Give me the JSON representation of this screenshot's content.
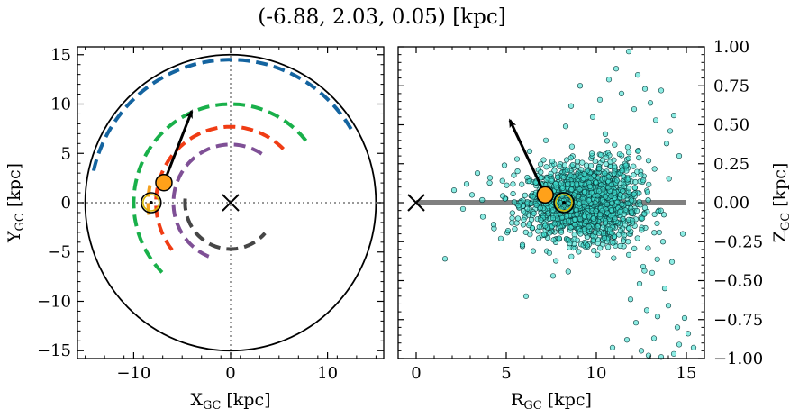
{
  "title": "(-6.88, 2.03, 0.05) [kpc]",
  "chart_data": [
    {
      "type": "line",
      "panel": "galactic-plane",
      "xlabel": "X",
      "xlabel_sub": "GC",
      "xlabel_unit": " [kpc]",
      "ylabel": "Y",
      "ylabel_sub": "GC",
      "ylabel_unit": " [kpc]",
      "xlim": [
        -15.8,
        15.8
      ],
      "ylim": [
        -15.8,
        15.8
      ],
      "xticks": [
        -10,
        0,
        10
      ],
      "xtick_labels": [
        "−10",
        "0",
        "10"
      ],
      "yticks": [
        -15,
        -10,
        -5,
        0,
        5,
        10,
        15
      ],
      "ytick_labels": [
        "−15",
        "−10",
        "−5",
        "0",
        "5",
        "10",
        "15"
      ],
      "grid": false,
      "boundary_circle_radius": 15,
      "galactic_center": [
        0,
        0
      ],
      "sun": [
        -8.2,
        0
      ],
      "object": [
        -6.88,
        2.03
      ],
      "velocity_arrow_end": [
        -4.0,
        9.3
      ],
      "arcs": [
        {
          "radius": 14.5,
          "start_deg": 31,
          "end_deg": 169,
          "color": "#1464A0"
        },
        {
          "radius": 10.0,
          "start_deg": 39,
          "end_deg": 225,
          "color": "#19B04A"
        },
        {
          "radius": 7.7,
          "start_deg": 45,
          "end_deg": 220,
          "color": "#F03C14"
        },
        {
          "radius": 5.9,
          "start_deg": 57,
          "end_deg": 251,
          "color": "#7F5096"
        },
        {
          "radius": 4.7,
          "start_deg": 175,
          "end_deg": 319,
          "color": "#464646"
        },
        {
          "radius": 8.5,
          "start_deg": 168,
          "end_deg": 192,
          "color": "#F5A01E"
        }
      ]
    },
    {
      "type": "scatter",
      "panel": "meridional-plane",
      "xlabel": "R",
      "xlabel_sub": "GC",
      "xlabel_unit": " [kpc]",
      "ylabel": "Z",
      "ylabel_sub": "GC",
      "ylabel_unit": " [kpc]",
      "xlim": [
        -1.0,
        16.0
      ],
      "ylim": [
        -1.0,
        1.0
      ],
      "xticks": [
        0,
        5,
        10,
        15
      ],
      "xtick_labels": [
        "0",
        "5",
        "10",
        "15"
      ],
      "yticks": [
        -1.0,
        -0.75,
        -0.5,
        -0.25,
        0.0,
        0.25,
        0.5,
        0.75,
        1.0
      ],
      "ytick_labels": [
        "−1.00",
        "−0.75",
        "−0.50",
        "−0.25",
        "0.00",
        "0.25",
        "0.50",
        "0.75",
        "1.00"
      ],
      "grid": false,
      "disk_line": {
        "x": [
          0,
          15
        ],
        "z": 0,
        "color": "#808080"
      },
      "galactic_center": [
        0,
        0
      ],
      "sun": [
        8.2,
        0.0
      ],
      "object": [
        7.16,
        0.05
      ],
      "velocity_arrow_end": [
        5.2,
        0.53
      ],
      "point_color": "#40E0D0",
      "points_core": {
        "count": 1700,
        "r_mean": 9.3,
        "r_sd": 1.5,
        "z_sd": 0.11
      },
      "points_outer": [
        [
          11.8,
          0.97
        ],
        [
          11.1,
          0.86
        ],
        [
          12.3,
          0.82
        ],
        [
          10.7,
          0.79
        ],
        [
          9.1,
          0.75
        ],
        [
          12.7,
          0.73
        ],
        [
          13.6,
          0.72
        ],
        [
          11.4,
          0.7
        ],
        [
          10.2,
          0.66
        ],
        [
          13.0,
          0.64
        ],
        [
          8.6,
          0.62
        ],
        [
          12.1,
          0.6
        ],
        [
          14.3,
          0.56
        ],
        [
          9.8,
          0.55
        ],
        [
          13.3,
          0.53
        ],
        [
          8.3,
          0.49
        ],
        [
          14.1,
          0.46
        ],
        [
          10.5,
          0.44
        ],
        [
          7.2,
          0.4
        ],
        [
          13.9,
          0.38
        ],
        [
          6.3,
          0.33
        ],
        [
          14.6,
          0.3
        ],
        [
          5.6,
          0.28
        ],
        [
          12.9,
          0.27
        ],
        [
          4.9,
          0.24
        ],
        [
          3.4,
          0.19
        ],
        [
          4.1,
          0.16
        ],
        [
          2.8,
          0.12
        ],
        [
          2.1,
          0.08
        ],
        [
          3.1,
          0.05
        ],
        [
          2.6,
          -0.04
        ],
        [
          3.7,
          -0.09
        ],
        [
          4.3,
          -0.14
        ],
        [
          5.1,
          -0.18
        ],
        [
          14.8,
          -0.2
        ],
        [
          4.7,
          -0.23
        ],
        [
          13.7,
          -0.25
        ],
        [
          5.9,
          -0.27
        ],
        [
          6.5,
          -0.31
        ],
        [
          1.6,
          -0.36
        ],
        [
          14.2,
          -0.38
        ],
        [
          12.6,
          -0.41
        ],
        [
          13.1,
          -0.45
        ],
        [
          7.6,
          -0.47
        ],
        [
          12.4,
          -0.52
        ],
        [
          13.8,
          -0.55
        ],
        [
          6.1,
          -0.6
        ],
        [
          11.9,
          -0.62
        ],
        [
          14.0,
          -0.66
        ],
        [
          12.8,
          -0.69
        ],
        [
          13.4,
          -0.73
        ],
        [
          14.9,
          -0.74
        ],
        [
          12.2,
          -0.77
        ],
        [
          14.5,
          -0.8
        ],
        [
          15.1,
          -0.84
        ],
        [
          13.2,
          -0.87
        ],
        [
          11.7,
          -0.88
        ],
        [
          14.6,
          -0.91
        ],
        [
          15.4,
          -0.93
        ],
        [
          12.5,
          -0.95
        ],
        [
          10.9,
          -0.93
        ],
        [
          14.3,
          -0.97
        ],
        [
          13.6,
          -0.99
        ],
        [
          12.9,
          -0.98
        ]
      ]
    }
  ]
}
